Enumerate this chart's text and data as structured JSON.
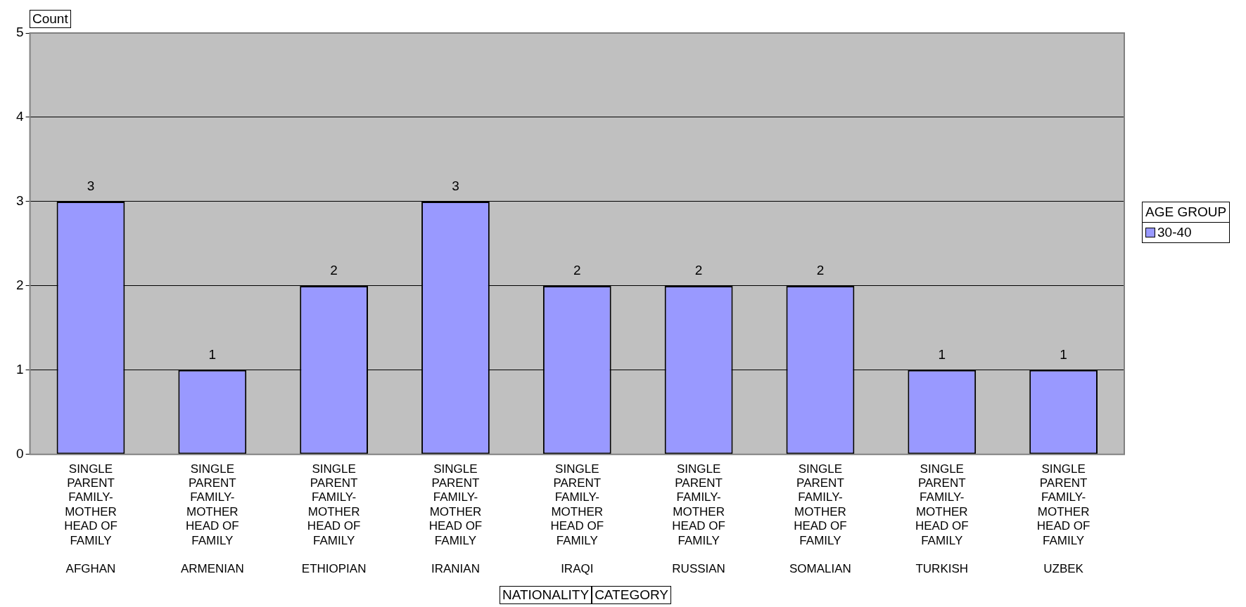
{
  "chart_data": {
    "type": "bar",
    "ylabel": "Count",
    "annotations": [
      "NATIONALITY",
      "CATEGORY"
    ],
    "legend_title": "AGE GROUP",
    "legend": "right",
    "grid": "y",
    "data_labels": true,
    "categories": [
      "SINGLE PARENT FAMILY-MOTHER HEAD OF FAMILY\nAFGHAN",
      "SINGLE PARENT FAMILY-MOTHER HEAD OF FAMILY\nARMENIAN",
      "SINGLE PARENT FAMILY-MOTHER HEAD OF FAMILY\nETHIOPIAN",
      "SINGLE PARENT FAMILY-MOTHER HEAD OF FAMILY\nIRANIAN",
      "SINGLE PARENT FAMILY-MOTHER HEAD OF FAMILY\nIRAQI",
      "SINGLE PARENT FAMILY-MOTHER HEAD OF FAMILY\nRUSSIAN",
      "SINGLE PARENT FAMILY-MOTHER HEAD OF FAMILY\nSOMALIAN",
      "SINGLE PARENT FAMILY-MOTHER HEAD OF FAMILY\nTURKISH",
      "SINGLE PARENT FAMILY-MOTHER HEAD OF FAMILY\nUZBEK"
    ],
    "series": [
      {
        "name": "30-40",
        "color": "#9999ff",
        "values": [
          3,
          1,
          2,
          3,
          2,
          2,
          2,
          1,
          1
        ]
      }
    ],
    "ylim": [
      0,
      5
    ],
    "yticks": [
      0,
      1,
      2,
      3,
      4,
      5
    ]
  }
}
